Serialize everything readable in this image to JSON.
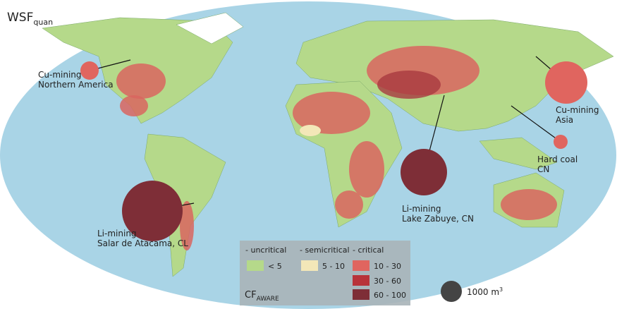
{
  "title": {
    "main": "WSF",
    "sub": "quan"
  },
  "annotations": [
    {
      "lines": [
        "Cu-mining",
        "Northern America"
      ]
    },
    {
      "lines": [
        "Cu-mining",
        "Asia"
      ]
    },
    {
      "lines": [
        "Hard coal",
        "CN"
      ]
    },
    {
      "lines": [
        "Li-mining",
        "Lake Zabuye, CN"
      ]
    },
    {
      "lines": [
        "Li-mining",
        "Salar de Atacama, CL"
      ]
    }
  ],
  "legend": {
    "groups": [
      "- uncritical",
      "- semicritical",
      "- critical"
    ],
    "classes": [
      {
        "label": "< 5",
        "color": "#b5d98a"
      },
      {
        "label": "5 - 10",
        "color": "#f3e7b8"
      },
      {
        "label": "10 - 30",
        "color": "#e0655f"
      },
      {
        "label": "30 - 60",
        "color": "#b8333a"
      },
      {
        "label": "60 - 100",
        "color": "#7e2e37"
      }
    ],
    "title": {
      "main": "CF",
      "sub": "AWARE"
    }
  },
  "scale": {
    "main": "1000 m",
    "sup": "3"
  }
}
